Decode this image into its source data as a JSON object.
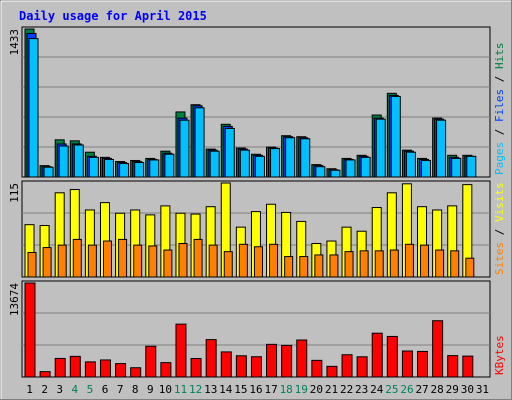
{
  "chart_data": [
    {
      "type": "bar",
      "panel": "hits-files-pages",
      "title": "Daily usage for April 2015",
      "ylabel_parts": [
        "Pages",
        "Files",
        "Hits"
      ],
      "y_max_label": "1433",
      "ylim": [
        0,
        1433
      ],
      "categories": [
        "1",
        "2",
        "3",
        "4",
        "5",
        "6",
        "7",
        "8",
        "9",
        "10",
        "11",
        "12",
        "13",
        "14",
        "15",
        "16",
        "17",
        "18",
        "19",
        "20",
        "21",
        "22",
        "23",
        "24",
        "25",
        "26",
        "27",
        "28",
        "29",
        "30",
        "31"
      ],
      "series": [
        {
          "name": "Hits",
          "values": [
            1433,
            110,
            360,
            350,
            240,
            190,
            150,
            160,
            180,
            250,
            630,
            700,
            270,
            510,
            280,
            220,
            290,
            400,
            390,
            120,
            80,
            180,
            210,
            600,
            810,
            260,
            180,
            570,
            210,
            210,
            0
          ]
        },
        {
          "name": "Files",
          "values": [
            1390,
            100,
            320,
            320,
            200,
            180,
            140,
            150,
            170,
            230,
            570,
            690,
            260,
            490,
            270,
            210,
            280,
            390,
            380,
            110,
            70,
            170,
            200,
            570,
            790,
            250,
            170,
            560,
            190,
            200,
            0
          ]
        },
        {
          "name": "Pages",
          "values": [
            1340,
            95,
            300,
            310,
            190,
            170,
            130,
            140,
            165,
            220,
            550,
            670,
            250,
            470,
            260,
            200,
            275,
            380,
            370,
            100,
            65,
            165,
            190,
            560,
            780,
            240,
            160,
            550,
            180,
            200,
            0
          ]
        }
      ]
    },
    {
      "type": "bar",
      "panel": "visits-sites",
      "ylabel_parts": [
        "Sites",
        "Visits"
      ],
      "y_max_label": "115",
      "ylim": [
        0,
        115
      ],
      "categories": [
        "1",
        "2",
        "3",
        "4",
        "5",
        "6",
        "7",
        "8",
        "9",
        "10",
        "11",
        "12",
        "13",
        "14",
        "15",
        "16",
        "17",
        "18",
        "19",
        "20",
        "21",
        "22",
        "23",
        "24",
        "25",
        "26",
        "27",
        "28",
        "29",
        "30",
        "31"
      ],
      "series": [
        {
          "name": "Visits",
          "values": [
            64,
            63,
            103,
            107,
            82,
            91,
            78,
            82,
            76,
            87,
            78,
            77,
            86,
            115,
            61,
            80,
            89,
            79,
            68,
            41,
            44,
            61,
            56,
            85,
            103,
            114,
            86,
            82,
            87,
            113,
            0
          ]
        },
        {
          "name": "Sites",
          "values": [
            30,
            36,
            39,
            46,
            39,
            44,
            46,
            39,
            38,
            33,
            41,
            46,
            39,
            31,
            40,
            37,
            40,
            25,
            25,
            27,
            27,
            31,
            32,
            32,
            33,
            40,
            39,
            33,
            32,
            23,
            0
          ]
        }
      ]
    },
    {
      "type": "bar",
      "panel": "kbytes",
      "ylabel_parts": [
        "KBytes"
      ],
      "y_max_label": "13674",
      "ylim": [
        0,
        13674
      ],
      "categories": [
        "1",
        "2",
        "3",
        "4",
        "5",
        "6",
        "7",
        "8",
        "9",
        "10",
        "11",
        "12",
        "13",
        "14",
        "15",
        "16",
        "17",
        "18",
        "19",
        "20",
        "21",
        "22",
        "23",
        "24",
        "25",
        "26",
        "27",
        "28",
        "29",
        "30",
        "31"
      ],
      "series": [
        {
          "name": "KBytes",
          "values": [
            13674,
            780,
            2700,
            3000,
            2200,
            2480,
            1950,
            1350,
            4470,
            2090,
            7690,
            2690,
            5440,
            3650,
            3090,
            2950,
            4750,
            4600,
            5380,
            2420,
            1550,
            3240,
            2940,
            6370,
            5900,
            3780,
            3720,
            8190,
            3110,
            3040,
            0
          ]
        }
      ]
    }
  ],
  "x_axis": {
    "labels": [
      "1",
      "2",
      "3",
      "4",
      "5",
      "6",
      "7",
      "8",
      "9",
      "10",
      "11",
      "12",
      "13",
      "14",
      "15",
      "16",
      "17",
      "18",
      "19",
      "20",
      "21",
      "22",
      "23",
      "24",
      "25",
      "26",
      "27",
      "28",
      "29",
      "30",
      "31"
    ],
    "weekend_days": [
      4,
      5,
      11,
      12,
      18,
      19,
      25,
      26
    ]
  },
  "colors": {
    "background": "#c0c0c0",
    "plot_background": "#c0c0c0",
    "title": "#0000ff",
    "gridline": "#808080",
    "axis_text": "#000000",
    "weekend_text": "#00805c",
    "hits": "#008040",
    "files": "#0040ff",
    "pages": "#00c0ff",
    "visits": "#ffff00",
    "sites": "#ff8000",
    "kbytes": "#ff0000",
    "bar_outline": "#000000"
  }
}
